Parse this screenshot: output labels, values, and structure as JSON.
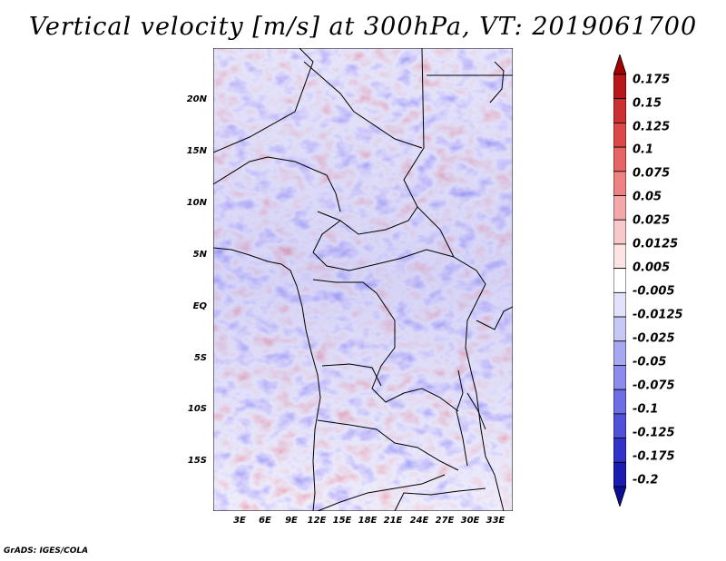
{
  "title": "Vertical velocity [m/s] at 300hPa, VT: 2019061700",
  "footer": "GrADS: IGES/COLA",
  "map": {
    "lon_range": [
      0,
      35
    ],
    "lat_range": [
      -20,
      25
    ],
    "lat_ticks": [
      "20N",
      "15N",
      "10N",
      "5N",
      "EQ",
      "5S",
      "10S",
      "15S"
    ],
    "lon_ticks": [
      "3E",
      "6E",
      "9E",
      "12E",
      "15E",
      "18E",
      "21E",
      "24E",
      "27E",
      "30E",
      "33E"
    ],
    "field": "vertical velocity",
    "level": "300hPa",
    "units": "m/s"
  },
  "colorbar": {
    "labels": [
      "0.175",
      "0.15",
      "0.125",
      "0.1",
      "0.075",
      "0.05",
      "0.025",
      "0.0125",
      "0.005",
      "-0.005",
      "-0.0125",
      "-0.025",
      "-0.05",
      "-0.075",
      "-0.1",
      "-0.125",
      "-0.175",
      "-0.2"
    ],
    "colors_top_to_bottom": [
      "#a00000",
      "#b81818",
      "#cc3030",
      "#dc4848",
      "#e66464",
      "#ee8282",
      "#f5a8a8",
      "#f9c8c8",
      "#fde4e4",
      "#ffffff",
      "#e2e2fb",
      "#c8c8f7",
      "#a8a8f2",
      "#8c8cec",
      "#6e6ee4",
      "#5050d8",
      "#3232c8",
      "#1c1cb0",
      "#0e0e94"
    ]
  }
}
